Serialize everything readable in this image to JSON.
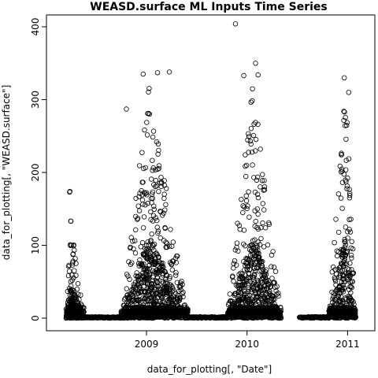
{
  "chart_data": {
    "type": "scatter",
    "title": "WEASD.surface ML Inputs Time Series",
    "xlabel": "data_for_plotting[, \"Date\"]",
    "ylabel": "data_for_plotting[, \"WEASD.surface\"]",
    "x_axis_type": "date",
    "xlim": [
      "2008-03-01",
      "2011-03-01"
    ],
    "ylim": [
      0,
      410
    ],
    "x_ticks": [
      {
        "value": "2009-01-01",
        "label": "2009"
      },
      {
        "value": "2010-01-01",
        "label": "2010"
      },
      {
        "value": "2011-01-01",
        "label": "2011"
      }
    ],
    "y_ticks": [
      0,
      100,
      200,
      300,
      400
    ],
    "grid": false,
    "legend": "none",
    "marker": "open-circle",
    "color": "#000000",
    "series": [
      {
        "clusters": [
          {
            "from": "2008-03-15",
            "to": "2008-05-20",
            "peak_date": "2008-04-01",
            "peak_value": 140,
            "outliers": [
              [
                "2008-03-28",
                173
              ],
              [
                "2008-03-29",
                174
              ]
            ]
          },
          {
            "from": "2008-10-01",
            "to": "2009-06-01",
            "peak_date": "2009-01-10",
            "peak_value": 320,
            "outliers": [
              [
                "2009-02-10",
                337
              ],
              [
                "2009-03-25",
                338
              ],
              [
                "2008-12-20",
                335
              ],
              [
                "2008-10-20",
                287
              ]
            ]
          },
          {
            "from": "2009-10-20",
            "to": "2010-05-05",
            "peak_date": "2010-01-25",
            "peak_value": 330,
            "outliers": [
              [
                "2009-11-20",
                404
              ],
              [
                "2010-02-01",
                350
              ],
              [
                "2010-02-10",
                334
              ],
              [
                "2009-12-20",
                333
              ]
            ]
          },
          {
            "from": "2010-10-25",
            "to": "2011-01-31",
            "peak_date": "2010-12-25",
            "peak_value": 330,
            "outliers": [
              [
                "2010-12-20",
                330
              ],
              [
                "2011-01-05",
                310
              ]
            ]
          }
        ],
        "zero_runs": [
          [
            "2008-05-20",
            "2008-10-01"
          ],
          [
            "2009-06-01",
            "2009-10-20"
          ],
          [
            "2010-07-10",
            "2010-10-25"
          ]
        ],
        "gaps": [
          [
            "2010-05-05",
            "2010-07-10"
          ]
        ]
      }
    ]
  }
}
